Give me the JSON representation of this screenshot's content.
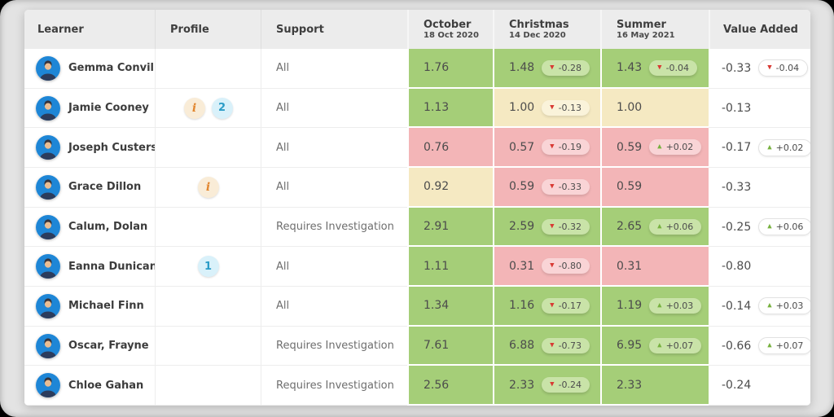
{
  "table": {
    "columns": {
      "learner": "Learner",
      "profile": "Profile",
      "support": "Support",
      "value_added": "Value Added"
    },
    "assessments": [
      {
        "name": "October",
        "date": "18 Oct 2020"
      },
      {
        "name": "Christmas",
        "date": "14 Dec 2020"
      },
      {
        "name": "Summer",
        "date": "16 May 2021"
      }
    ],
    "colors": {
      "cell_good": "#a5ce78",
      "cell_warn": "#f5e9c2",
      "cell_bad": "#f3b5b7",
      "arrow_down": "#d83a34",
      "arrow_up": "#77b13f",
      "avatar_blue": "#1e86d6",
      "info_icon_bg": "#f9ecd7",
      "info_icon_fg": "#e2862f",
      "count_badge_bg": "#d9f1fa",
      "count_badge_fg": "#2a9cc7"
    },
    "rows": [
      {
        "learner": "Gemma Conville",
        "profile": [],
        "support": "All",
        "scores": [
          {
            "value": "1.76",
            "tone": "good"
          },
          {
            "value": "1.48",
            "tone": "good",
            "change": "-0.28",
            "dir": "down"
          },
          {
            "value": "1.43",
            "tone": "good",
            "change": "-0.04",
            "dir": "down"
          }
        ],
        "value_added": {
          "value": "-0.33",
          "change": "-0.04",
          "dir": "down"
        }
      },
      {
        "learner": "Jamie Cooney",
        "profile": [
          {
            "type": "info",
            "label": "i"
          },
          {
            "type": "count",
            "label": "2"
          }
        ],
        "support": "All",
        "scores": [
          {
            "value": "1.13",
            "tone": "good"
          },
          {
            "value": "1.00",
            "tone": "warn",
            "change": "-0.13",
            "dir": "down"
          },
          {
            "value": "1.00",
            "tone": "warn"
          }
        ],
        "value_added": {
          "value": "-0.13"
        }
      },
      {
        "learner": "Joseph Custerson",
        "profile": [],
        "support": "All",
        "scores": [
          {
            "value": "0.76",
            "tone": "bad"
          },
          {
            "value": "0.57",
            "tone": "bad",
            "change": "-0.19",
            "dir": "down"
          },
          {
            "value": "0.59",
            "tone": "bad",
            "change": "+0.02",
            "dir": "up"
          }
        ],
        "value_added": {
          "value": "-0.17",
          "change": "+0.02",
          "dir": "up"
        }
      },
      {
        "learner": "Grace Dillon",
        "profile": [
          {
            "type": "info",
            "label": "i"
          }
        ],
        "support": "All",
        "scores": [
          {
            "value": "0.92",
            "tone": "warn"
          },
          {
            "value": "0.59",
            "tone": "bad",
            "change": "-0.33",
            "dir": "down"
          },
          {
            "value": "0.59",
            "tone": "bad"
          }
        ],
        "value_added": {
          "value": "-0.33"
        }
      },
      {
        "learner": "Calum, Dolan",
        "profile": [],
        "support": "Requires Investigation",
        "scores": [
          {
            "value": "2.91",
            "tone": "good"
          },
          {
            "value": "2.59",
            "tone": "good",
            "change": "-0.32",
            "dir": "down"
          },
          {
            "value": "2.65",
            "tone": "good",
            "change": "+0.06",
            "dir": "up"
          }
        ],
        "value_added": {
          "value": "-0.25",
          "change": "+0.06",
          "dir": "up"
        }
      },
      {
        "learner": "Eanna Dunican",
        "profile": [
          {
            "type": "count",
            "label": "1"
          }
        ],
        "support": "All",
        "scores": [
          {
            "value": "1.11",
            "tone": "good"
          },
          {
            "value": "0.31",
            "tone": "bad",
            "change": "-0.80",
            "dir": "down"
          },
          {
            "value": "0.31",
            "tone": "bad"
          }
        ],
        "value_added": {
          "value": "-0.80"
        }
      },
      {
        "learner": "Michael Finn",
        "profile": [],
        "support": "All",
        "scores": [
          {
            "value": "1.34",
            "tone": "good"
          },
          {
            "value": "1.16",
            "tone": "good",
            "change": "-0.17",
            "dir": "down"
          },
          {
            "value": "1.19",
            "tone": "good",
            "change": "+0.03",
            "dir": "up"
          }
        ],
        "value_added": {
          "value": "-0.14",
          "change": "+0.03",
          "dir": "up"
        }
      },
      {
        "learner": "Oscar, Frayne",
        "profile": [],
        "support": "Requires Investigation",
        "scores": [
          {
            "value": "7.61",
            "tone": "good"
          },
          {
            "value": "6.88",
            "tone": "good",
            "change": "-0.73",
            "dir": "down"
          },
          {
            "value": "6.95",
            "tone": "good",
            "change": "+0.07",
            "dir": "up"
          }
        ],
        "value_added": {
          "value": "-0.66",
          "change": "+0.07",
          "dir": "up"
        }
      },
      {
        "learner": "Chloe Gahan",
        "profile": [],
        "support": "Requires Investigation",
        "scores": [
          {
            "value": "2.56",
            "tone": "good"
          },
          {
            "value": "2.33",
            "tone": "good",
            "change": "-0.24",
            "dir": "down"
          },
          {
            "value": "2.33",
            "tone": "good"
          }
        ],
        "value_added": {
          "value": "-0.24"
        }
      }
    ]
  }
}
